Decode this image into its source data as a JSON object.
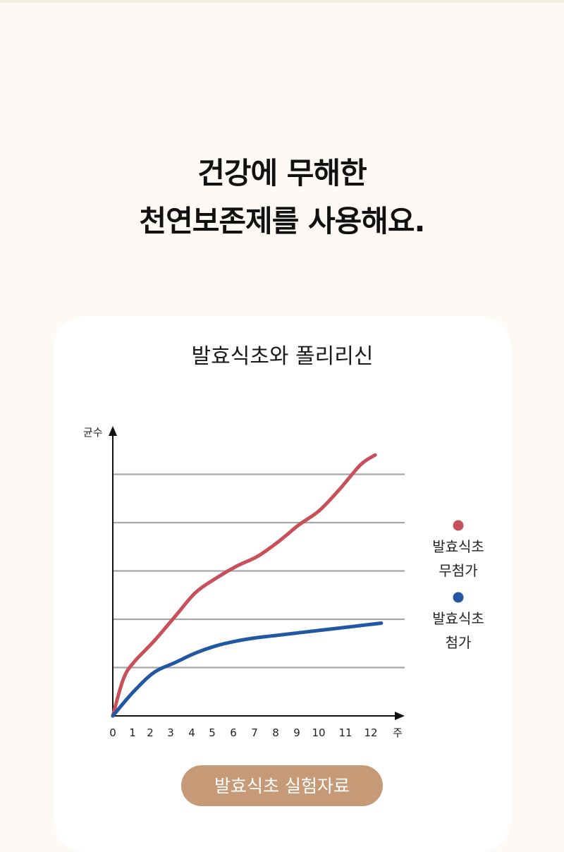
{
  "headline": {
    "line1": "건강에 무해한",
    "line2": "천연보존제를 사용해요."
  },
  "card": {
    "title": "발효식초와 폴리리신"
  },
  "chart_data": {
    "type": "line",
    "title": "발효식초와 폴리리신",
    "ylabel": "균수",
    "xlabel": "주",
    "x_ticks": [
      "0",
      "1",
      "2",
      "3",
      "4",
      "5",
      "6",
      "7",
      "8",
      "9",
      "10",
      "11",
      "12",
      "주"
    ],
    "xlim": [
      0,
      13
    ],
    "ylim": [
      0,
      5
    ],
    "grid": true,
    "gridlines": [
      1,
      2,
      3,
      4,
      5
    ],
    "legend_position": "right",
    "series": [
      {
        "name_line1": "발효식초",
        "name_line2": "무첨가",
        "color": "#c8505a",
        "x": [
          0,
          0.5,
          1,
          2,
          3,
          4,
          5,
          6,
          7,
          8,
          9,
          10,
          11,
          12,
          12.7
        ],
        "y": [
          0,
          0.75,
          1.1,
          1.55,
          2.05,
          2.55,
          2.85,
          3.1,
          3.3,
          3.6,
          3.95,
          4.25,
          4.7,
          5.2,
          5.4
        ]
      },
      {
        "name_line1": "발효식초",
        "name_line2": "첨가",
        "color": "#2257a3",
        "x": [
          0,
          1,
          2,
          3,
          4,
          5,
          6,
          7,
          8,
          9,
          10,
          11,
          12,
          13
        ],
        "y": [
          0,
          0.5,
          0.9,
          1.1,
          1.3,
          1.45,
          1.55,
          1.62,
          1.67,
          1.72,
          1.77,
          1.82,
          1.87,
          1.92
        ]
      }
    ]
  },
  "button": {
    "label": "발효식초 실험자료"
  }
}
